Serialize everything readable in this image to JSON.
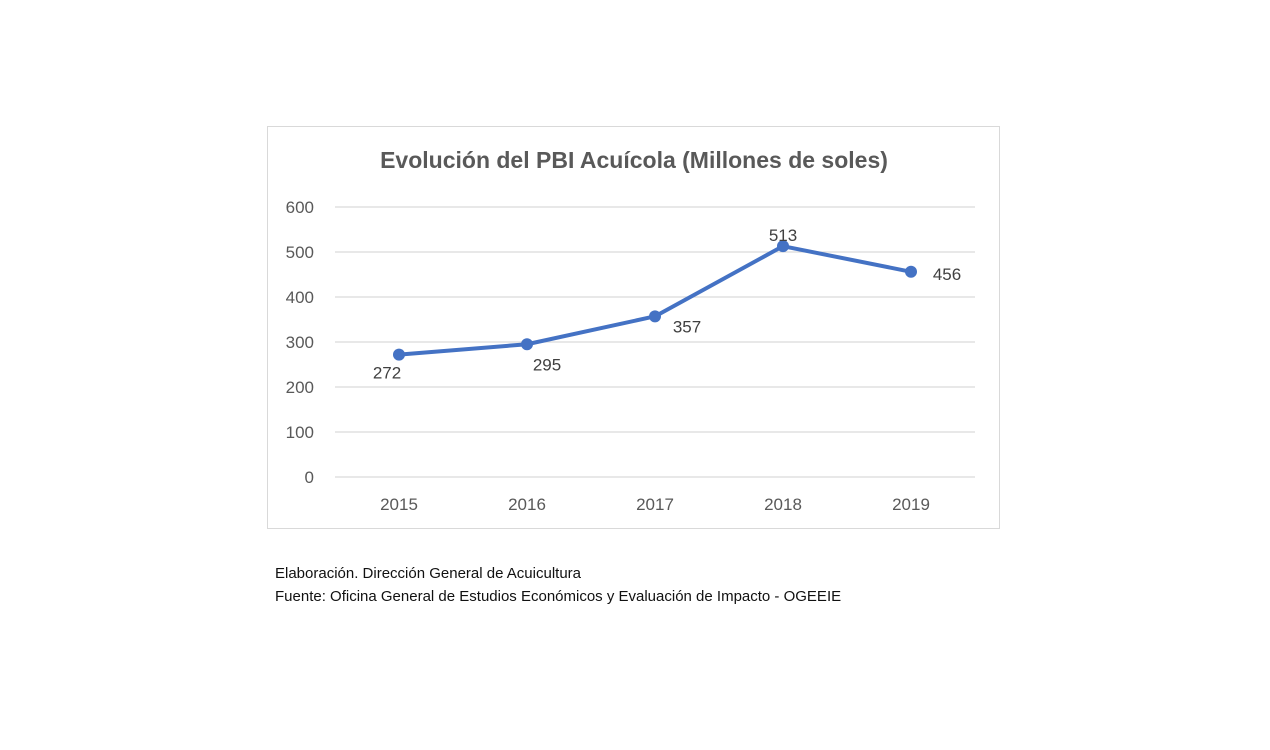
{
  "chart_data": {
    "type": "line",
    "title": "Evolución del PBI Acuícola (Millones de soles)",
    "categories": [
      "2015",
      "2016",
      "2017",
      "2018",
      "2019"
    ],
    "values": [
      272,
      295,
      357,
      513,
      456
    ],
    "ylim": [
      0,
      600
    ],
    "yticks": [
      0,
      100,
      200,
      300,
      400,
      500,
      600
    ],
    "grid": true,
    "data_labels": true,
    "line_color": "#4472c4"
  },
  "captions": {
    "elaboracion": "Elaboración. Dirección General de Acuicultura",
    "fuente": "Fuente: Oficina General de Estudios Económicos y Evaluación de Impacto - OGEEIE"
  }
}
